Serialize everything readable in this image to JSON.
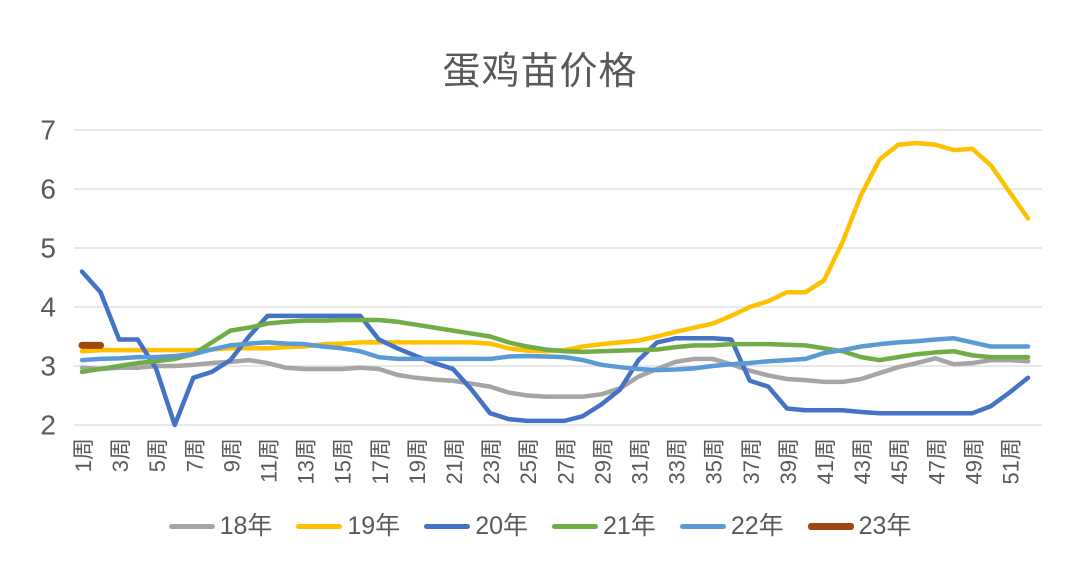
{
  "title": "蛋鸡苗价格",
  "axis": {
    "y_tick_labels": [
      "7",
      "6",
      "5",
      "4",
      "3",
      "2"
    ],
    "x_tick_weeks": [
      1,
      3,
      5,
      7,
      9,
      11,
      13,
      15,
      17,
      19,
      21,
      23,
      25,
      27,
      29,
      31,
      33,
      35,
      37,
      39,
      41,
      43,
      45,
      47,
      49,
      51
    ],
    "x_tick_labels": [
      "1周",
      "3周",
      "5周",
      "7周",
      "9周",
      "11周",
      "13周",
      "15周",
      "17周",
      "19周",
      "21周",
      "23周",
      "25周",
      "27周",
      "29周",
      "31周",
      "33周",
      "35周",
      "37周",
      "39周",
      "41周",
      "43周",
      "45周",
      "47周",
      "49周",
      "51周"
    ],
    "text_color": "#595959",
    "gridline_color": "#D9D9D9"
  },
  "chart_data": {
    "type": "line",
    "title": "蛋鸡苗价格",
    "x_unit": "周",
    "x_range": [
      1,
      52
    ],
    "ylim": [
      2,
      7
    ],
    "y_ticks": [
      7,
      6,
      5,
      4,
      3,
      2
    ],
    "grid": "horizontal",
    "legend_position": "bottom",
    "series": [
      {
        "name": "18年",
        "color": "#A5A5A5",
        "line_width": 4.5,
        "values": [
          2.97,
          2.95,
          2.97,
          2.97,
          3.0,
          3.0,
          3.02,
          3.05,
          3.07,
          3.1,
          3.05,
          2.97,
          2.95,
          2.95,
          2.95,
          2.97,
          2.95,
          2.85,
          2.8,
          2.77,
          2.75,
          2.7,
          2.65,
          2.55,
          2.5,
          2.48,
          2.48,
          2.48,
          2.52,
          2.62,
          2.82,
          2.95,
          3.07,
          3.12,
          3.12,
          3.03,
          2.92,
          2.84,
          2.78,
          2.76,
          2.73,
          2.73,
          2.78,
          2.88,
          2.98,
          3.05,
          3.13,
          3.03,
          3.05,
          3.1,
          3.1,
          3.08
        ]
      },
      {
        "name": "19年",
        "color": "#FFC000",
        "line_width": 4.5,
        "values": [
          3.25,
          3.27,
          3.27,
          3.27,
          3.27,
          3.27,
          3.27,
          3.28,
          3.3,
          3.3,
          3.3,
          3.32,
          3.33,
          3.37,
          3.38,
          3.4,
          3.4,
          3.4,
          3.4,
          3.4,
          3.4,
          3.4,
          3.38,
          3.3,
          3.26,
          3.25,
          3.27,
          3.33,
          3.37,
          3.4,
          3.43,
          3.5,
          3.58,
          3.65,
          3.72,
          3.85,
          4.0,
          4.1,
          4.25,
          4.25,
          4.45,
          5.1,
          5.9,
          6.5,
          6.75,
          6.78,
          6.75,
          6.66,
          6.68,
          6.4,
          5.95,
          5.5
        ]
      },
      {
        "name": "20年",
        "color": "#4472C4",
        "line_width": 4.5,
        "values": [
          4.6,
          4.25,
          3.45,
          3.45,
          2.95,
          2.0,
          2.8,
          2.9,
          3.1,
          3.5,
          3.85,
          3.85,
          3.85,
          3.85,
          3.85,
          3.85,
          3.45,
          3.3,
          3.17,
          3.05,
          2.95,
          2.6,
          2.2,
          2.1,
          2.07,
          2.07,
          2.07,
          2.15,
          2.35,
          2.6,
          3.1,
          3.4,
          3.47,
          3.47,
          3.47,
          3.45,
          2.75,
          2.65,
          2.28,
          2.25,
          2.25,
          2.25,
          2.22,
          2.2,
          2.2,
          2.2,
          2.2,
          2.2,
          2.2,
          2.32,
          2.55,
          2.8
        ]
      },
      {
        "name": "21年",
        "color": "#70AD47",
        "line_width": 4.5,
        "values": [
          2.9,
          2.95,
          3.0,
          3.05,
          3.08,
          3.12,
          3.2,
          3.4,
          3.6,
          3.65,
          3.72,
          3.75,
          3.77,
          3.77,
          3.78,
          3.78,
          3.78,
          3.75,
          3.7,
          3.65,
          3.6,
          3.55,
          3.5,
          3.4,
          3.33,
          3.28,
          3.25,
          3.24,
          3.25,
          3.26,
          3.27,
          3.28,
          3.32,
          3.35,
          3.35,
          3.37,
          3.37,
          3.37,
          3.36,
          3.35,
          3.3,
          3.25,
          3.15,
          3.1,
          3.15,
          3.2,
          3.23,
          3.25,
          3.18,
          3.15,
          3.15,
          3.15
        ]
      },
      {
        "name": "22年",
        "color": "#5B9BD5",
        "line_width": 4.5,
        "values": [
          3.1,
          3.12,
          3.13,
          3.15,
          3.15,
          3.17,
          3.2,
          3.28,
          3.35,
          3.38,
          3.4,
          3.38,
          3.37,
          3.33,
          3.3,
          3.25,
          3.15,
          3.12,
          3.12,
          3.12,
          3.12,
          3.12,
          3.12,
          3.16,
          3.17,
          3.16,
          3.15,
          3.1,
          3.02,
          2.98,
          2.95,
          2.93,
          2.94,
          2.96,
          3.0,
          3.03,
          3.05,
          3.08,
          3.1,
          3.12,
          3.22,
          3.27,
          3.33,
          3.37,
          3.4,
          3.42,
          3.45,
          3.47,
          3.4,
          3.33,
          3.33,
          3.33
        ]
      },
      {
        "name": "23年",
        "color": "#9E480E",
        "line_width": 7,
        "values": [
          3.35,
          3.35,
          null,
          null,
          null,
          null,
          null,
          null,
          null,
          null,
          null,
          null,
          null,
          null,
          null,
          null,
          null,
          null,
          null,
          null,
          null,
          null,
          null,
          null,
          null,
          null,
          null,
          null,
          null,
          null,
          null,
          null,
          null,
          null,
          null,
          null,
          null,
          null,
          null,
          null,
          null,
          null,
          null,
          null,
          null,
          null,
          null,
          null,
          null,
          null,
          null,
          null
        ]
      }
    ]
  },
  "legend": {
    "items": [
      {
        "label": "18年",
        "color": "#A5A5A5"
      },
      {
        "label": "19年",
        "color": "#FFC000"
      },
      {
        "label": "20年",
        "color": "#4472C4"
      },
      {
        "label": "21年",
        "color": "#70AD47"
      },
      {
        "label": "22年",
        "color": "#5B9BD5"
      },
      {
        "label": "23年",
        "color": "#9E480E"
      }
    ]
  }
}
